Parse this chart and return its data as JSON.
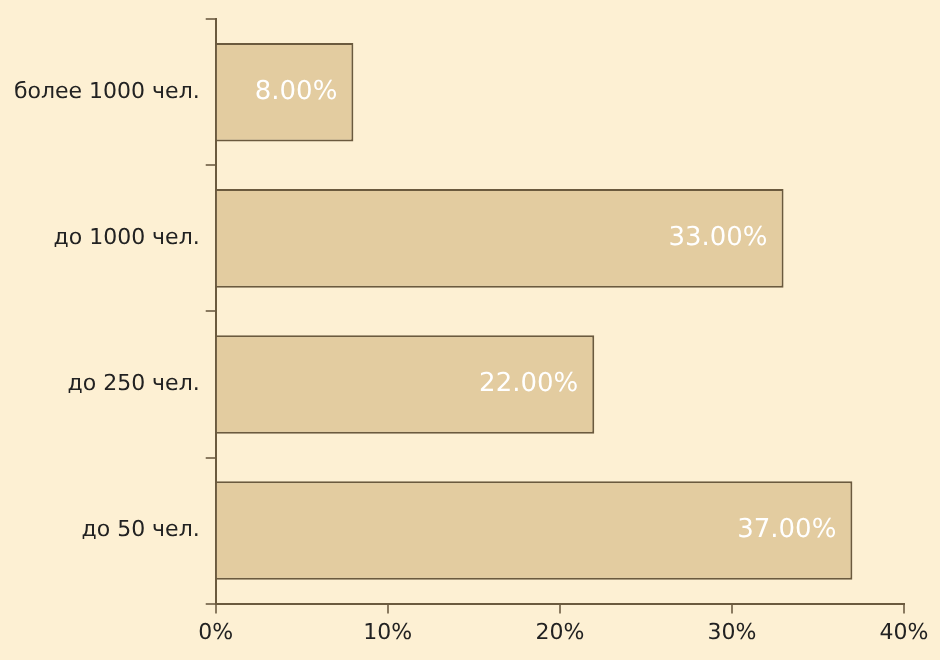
{
  "chart_data": {
    "type": "bar",
    "orientation": "horizontal",
    "categories": [
      "более 1000 чел.",
      "до 1000 чел.",
      "до 250 чел.",
      "до 50 чел."
    ],
    "values": [
      8,
      33,
      22,
      37
    ],
    "color": "#e3cca0",
    "value_labels": [
      "8.00%",
      "33.00%",
      "22.00%",
      "37.00%"
    ],
    "xlim": [
      0,
      40
    ],
    "xticks": [
      {
        "value": 0,
        "label": "0%"
      },
      {
        "value": 10,
        "label": "10%"
      },
      {
        "value": 20,
        "label": "20%"
      },
      {
        "value": 30,
        "label": "30%"
      },
      {
        "value": 40,
        "label": "40%"
      }
    ],
    "grid": false,
    "legend": false
  }
}
